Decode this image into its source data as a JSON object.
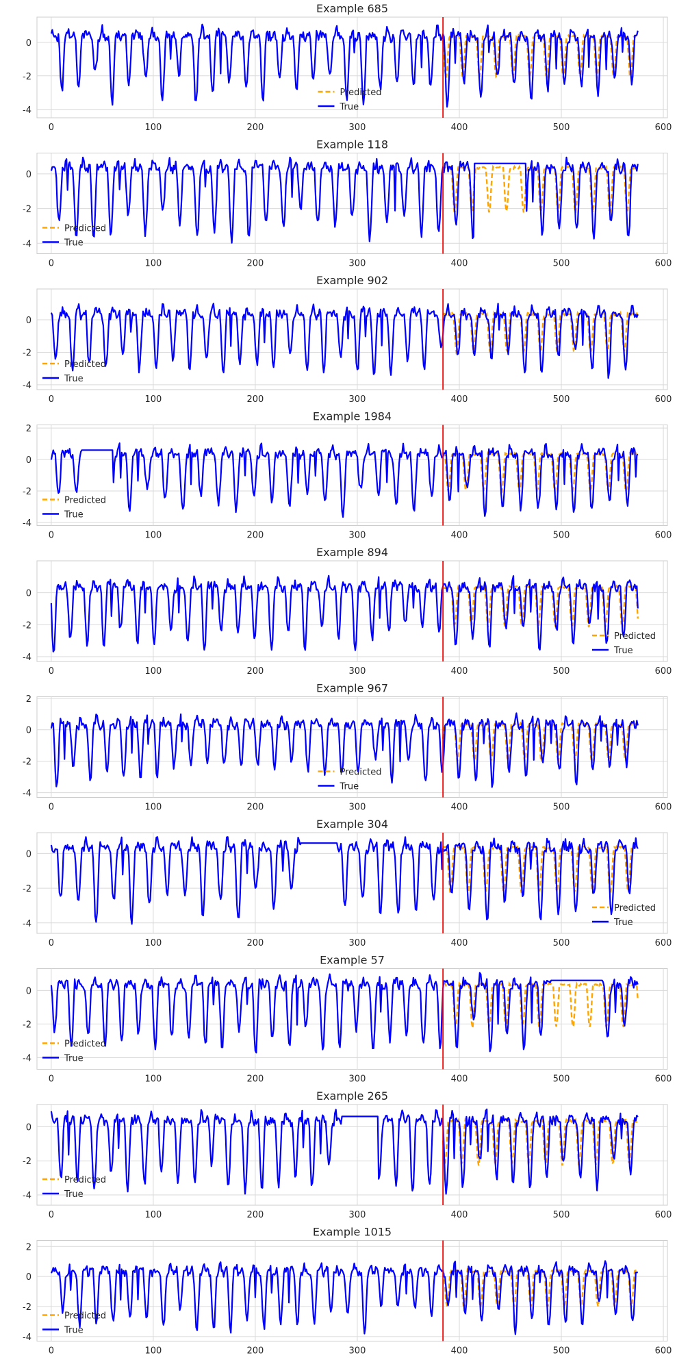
{
  "chart_data": [
    {
      "type": "line",
      "title": "Example 685",
      "ylim": [
        -4.5,
        1.5
      ],
      "yticks": [
        0,
        -2,
        -4
      ],
      "legend_position": "lower center",
      "amp": 4.1,
      "seed": 685,
      "trough_phase": 2,
      "dip_count": 35,
      "flat_segment": null
    },
    {
      "type": "line",
      "title": "Example 118",
      "ylim": [
        -4.6,
        1.2
      ],
      "yticks": [
        0,
        -2,
        -4
      ],
      "legend_position": "lower left",
      "amp": 4.3,
      "seed": 118,
      "trough_phase": 5,
      "dip_count": 34,
      "flat_segment": [
        415,
        465
      ]
    },
    {
      "type": "line",
      "title": "Example 902",
      "ylim": [
        -4.3,
        1.9
      ],
      "yticks": [
        0,
        -2,
        -4
      ],
      "legend_position": "lower left",
      "amp": 3.9,
      "seed": 902,
      "trough_phase": 8,
      "dip_count": 35,
      "flat_segment": null
    },
    {
      "type": "line",
      "title": "Example 1984",
      "ylim": [
        -4.2,
        2.2
      ],
      "yticks": [
        2,
        0,
        -2,
        -4
      ],
      "legend_position": "lower left",
      "amp": 4.0,
      "seed": 1984,
      "trough_phase": 6,
      "dip_count": 33,
      "flat_segment": [
        30,
        60
      ]
    },
    {
      "type": "line",
      "title": "Example 894",
      "ylim": [
        -4.3,
        2.0
      ],
      "yticks": [
        0,
        -2,
        -4
      ],
      "legend_position": "lower right",
      "amp": 4.1,
      "seed": 894,
      "trough_phase": 10,
      "dip_count": 35,
      "flat_segment": null
    },
    {
      "type": "line",
      "title": "Example 967",
      "ylim": [
        -4.3,
        2.1
      ],
      "yticks": [
        2,
        0,
        -2,
        -4
      ],
      "legend_position": "lower center",
      "amp": 4.0,
      "seed": 967,
      "trough_phase": 7,
      "dip_count": 35,
      "flat_segment": null
    },
    {
      "type": "line",
      "title": "Example 304",
      "ylim": [
        -4.6,
        1.2
      ],
      "yticks": [
        0,
        -2,
        -4
      ],
      "legend_position": "lower right",
      "amp": 4.3,
      "seed": 304,
      "trough_phase": 4,
      "dip_count": 33,
      "flat_segment": [
        245,
        280
      ]
    },
    {
      "type": "line",
      "title": "Example 57",
      "ylim": [
        -4.7,
        1.3
      ],
      "yticks": [
        0,
        -2,
        -4
      ],
      "legend_position": "lower left",
      "amp": 4.3,
      "seed": 57,
      "trough_phase": 9,
      "dip_count": 35,
      "flat_segment": [
        490,
        540
      ]
    },
    {
      "type": "line",
      "title": "Example 265",
      "ylim": [
        -4.6,
        1.3
      ],
      "yticks": [
        0,
        -2,
        -4
      ],
      "legend_position": "lower left",
      "amp": 4.3,
      "seed": 265,
      "trough_phase": 3,
      "dip_count": 35,
      "flat_segment": [
        285,
        320
      ]
    },
    {
      "type": "line",
      "title": "Example 1015",
      "ylim": [
        -4.3,
        2.4
      ],
      "yticks": [
        2,
        0,
        -2,
        -4
      ],
      "legend_position": "lower left",
      "amp": 4.0,
      "seed": 1015,
      "trough_phase": 1,
      "dip_count": 35,
      "flat_segment": null
    }
  ],
  "shared": {
    "xlim": [
      -14,
      604
    ],
    "xticks": [
      0,
      100,
      200,
      300,
      400,
      500,
      600
    ],
    "x_start": 0,
    "x_end": 575,
    "forecast_start": 384,
    "series": [
      {
        "name": "Predicted",
        "color": "#FFA500",
        "dash": "dashed"
      },
      {
        "name": "True",
        "color": "#0000FF",
        "dash": "solid"
      }
    ],
    "vline_color": "#FF0000",
    "grid": true
  }
}
